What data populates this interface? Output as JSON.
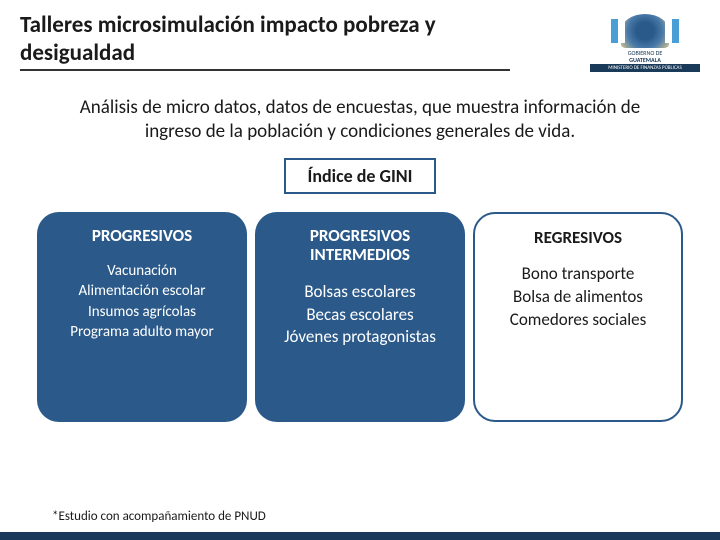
{
  "header": {
    "title": "Talleres microsimulación impacto pobreza y desigualdad",
    "logo": {
      "line1": "GOBIERNO DE",
      "line2": "GUATEMALA",
      "bar": "MINISTERIO DE FINANZAS PÚBLICAS"
    }
  },
  "subtitle": "Análisis de micro datos, datos de encuestas, que muestra información de ingreso de la población y condiciones generales de vida.",
  "gini_label": "Índice de GINI",
  "columns": [
    {
      "variant": "blue",
      "title": "PROGRESIVOS",
      "items": [
        "Vacunación",
        "Alimentación escolar",
        "Insumos agrícolas",
        "Programa adulto mayor"
      ],
      "item_size": "sm"
    },
    {
      "variant": "blue",
      "title": "PROGRESIVOS INTERMEDIOS",
      "items": [
        "Bolsas escolares",
        "Becas escolares",
        "Jóvenes protagonistas"
      ],
      "item_size": "lg"
    },
    {
      "variant": "white",
      "title": "REGRESIVOS",
      "items": [
        "Bono transporte",
        "Bolsa de alimentos",
        "Comedores sociales"
      ],
      "item_size": "lg"
    }
  ],
  "footnote": "*Estudio con acompañamiento de PNUD",
  "colors": {
    "card_blue_bg": "#2b5a8a",
    "card_white_border": "#2b5a8a",
    "bottom_bar": "#1a3a5a"
  }
}
